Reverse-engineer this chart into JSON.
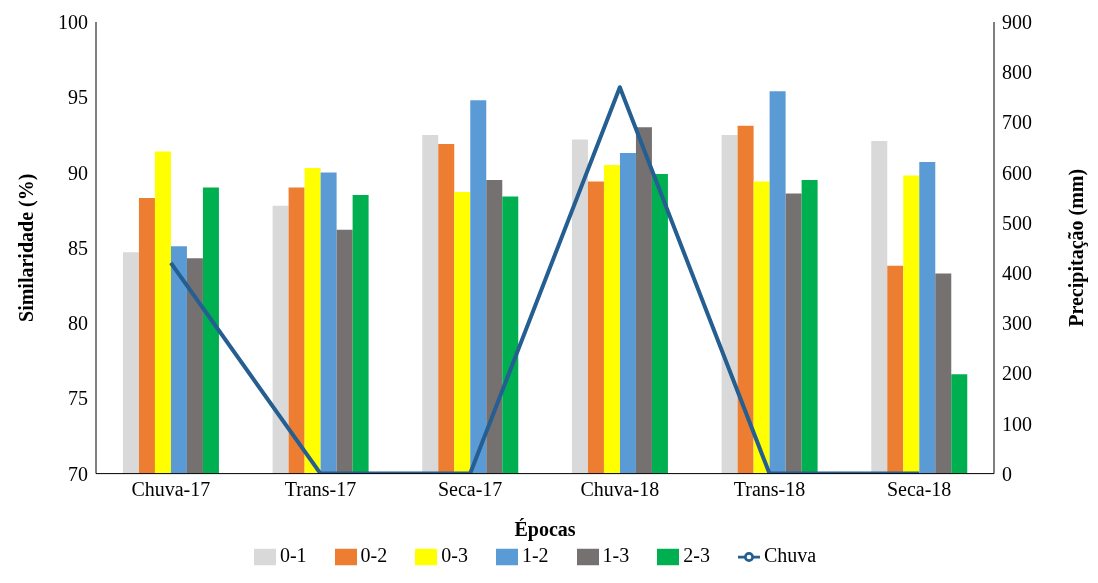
{
  "chart_data": {
    "type": "bar",
    "xlabel": "Épocas",
    "ylabel": "Similaridade (%)",
    "y2label": "Precipitação (mm)",
    "categories": [
      "Chuva-17",
      "Trans-17",
      "Seca-17",
      "Chuva-18",
      "Trans-18",
      "Seca-18"
    ],
    "series": [
      {
        "name": "0-1",
        "color": "#d9d9d9",
        "values": [
          84.7,
          87.8,
          92.5,
          92.2,
          92.5,
          92.1
        ]
      },
      {
        "name": "0-2",
        "color": "#ed7d31",
        "values": [
          88.3,
          89.0,
          91.9,
          89.4,
          93.1,
          83.8
        ]
      },
      {
        "name": "0-3",
        "color": "#ffff00",
        "values": [
          91.4,
          90.3,
          88.7,
          90.5,
          89.4,
          89.8
        ]
      },
      {
        "name": "1-2",
        "color": "#5b9bd5",
        "values": [
          85.1,
          90.0,
          94.8,
          91.3,
          95.4,
          90.7
        ]
      },
      {
        "name": "1-3",
        "color": "#767171",
        "values": [
          84.3,
          86.2,
          89.5,
          93.0,
          88.6,
          83.3
        ]
      },
      {
        "name": "2-3",
        "color": "#00b050",
        "values": [
          89.0,
          88.5,
          88.4,
          89.9,
          89.5,
          76.6
        ]
      },
      {
        "name": "Chuva",
        "type": "line",
        "axis": "y2",
        "color": "#255e91",
        "values": [
          420,
          0,
          0,
          770,
          0,
          0
        ]
      }
    ],
    "ylim": [
      70,
      100
    ],
    "yticks": [
      70,
      75,
      80,
      85,
      90,
      95,
      100
    ],
    "y2lim": [
      0,
      900
    ],
    "y2ticks": [
      0,
      100,
      200,
      300,
      400,
      500,
      600,
      700,
      800,
      900
    ],
    "grid": false,
    "legend": "bottom",
    "marker": "none",
    "line_style": "solid"
  }
}
